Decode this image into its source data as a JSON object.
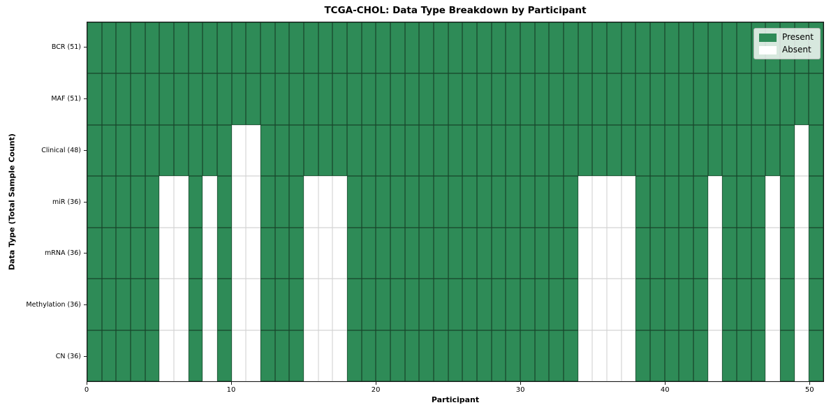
{
  "chart_data": {
    "type": "heatmap",
    "title": "TCGA-CHOL: Data Type Breakdown by Participant",
    "xlabel": "Participant",
    "ylabel": "Data Type (Total Sample Count)",
    "x_ticks": [
      0,
      10,
      20,
      30,
      40,
      50
    ],
    "x_range": [
      0,
      51
    ],
    "n_participants": 51,
    "grid": true,
    "legend_position": "upper right",
    "colors": {
      "present": "#2e8b57",
      "absent": "#ffffff"
    },
    "legend": [
      {
        "label": "Present",
        "color": "#2e8b57"
      },
      {
        "label": "Absent",
        "color": "#ffffff"
      }
    ],
    "rows": [
      {
        "label": "BCR (51)",
        "data_type": "BCR",
        "present_count": 51,
        "absent_participants": []
      },
      {
        "label": "MAF (51)",
        "data_type": "MAF",
        "present_count": 51,
        "absent_participants": []
      },
      {
        "label": "Clinical (48)",
        "data_type": "Clinical",
        "present_count": 48,
        "absent_participants": [
          10,
          11,
          49
        ]
      },
      {
        "label": "miR (36)",
        "data_type": "miR",
        "present_count": 36,
        "absent_participants": [
          5,
          6,
          8,
          10,
          11,
          15,
          16,
          17,
          34,
          35,
          36,
          37,
          43,
          47,
          49
        ]
      },
      {
        "label": "mRNA (36)",
        "data_type": "mRNA",
        "present_count": 36,
        "absent_participants": [
          5,
          6,
          8,
          10,
          11,
          15,
          16,
          17,
          34,
          35,
          36,
          37,
          43,
          47,
          49
        ]
      },
      {
        "label": "Methylation (36)",
        "data_type": "Methylation",
        "present_count": 36,
        "absent_participants": [
          5,
          6,
          8,
          10,
          11,
          15,
          16,
          17,
          34,
          35,
          36,
          37,
          43,
          47,
          49
        ]
      },
      {
        "label": "CN (36)",
        "data_type": "CN",
        "present_count": 36,
        "absent_participants": [
          5,
          6,
          8,
          10,
          11,
          15,
          16,
          17,
          34,
          35,
          36,
          37,
          43,
          47,
          49
        ]
      }
    ]
  }
}
